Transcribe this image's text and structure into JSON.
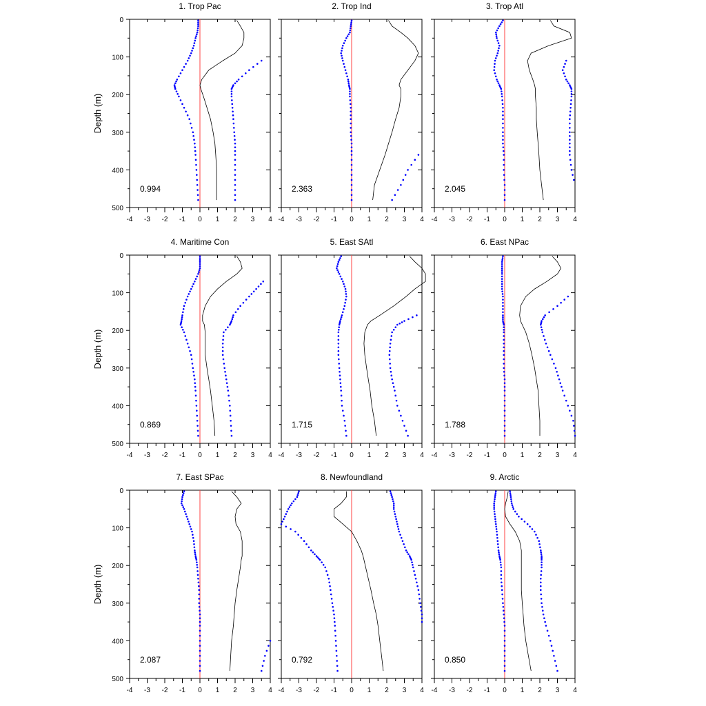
{
  "ylabel": "Depth (m)",
  "xlim": [
    -4,
    4
  ],
  "ylim": [
    0,
    500
  ],
  "y_reversed": true,
  "xticks": [
    "-4",
    "-3",
    "-2",
    "-1",
    "0",
    "1",
    "2",
    "3",
    "4"
  ],
  "yticks": [
    "0",
    "100",
    "200",
    "300",
    "400",
    "500"
  ],
  "colors": {
    "line": "#000000",
    "dots": "#0000ff",
    "zero_line": "#ff4040"
  },
  "chart_data": [
    {
      "type": "line",
      "title": "1. Trop Pac",
      "value_label": "0.994",
      "depths": [
        3,
        18,
        35,
        50,
        70,
        90,
        110,
        135,
        160,
        175,
        185,
        205,
        235,
        265,
        300,
        330,
        360,
        400,
        440,
        480
      ],
      "line": [
        2.1,
        2.3,
        2.5,
        2.5,
        2.4,
        2.0,
        1.3,
        0.5,
        0.1,
        0.0,
        0.05,
        0.2,
        0.4,
        0.6,
        0.75,
        0.85,
        0.9,
        0.95,
        0.95,
        0.95
      ],
      "lower": [
        -0.1,
        -0.1,
        -0.15,
        -0.25,
        -0.35,
        -0.5,
        -0.7,
        -1.0,
        -1.3,
        -1.45,
        -1.4,
        -1.2,
        -0.9,
        -0.6,
        -0.4,
        -0.3,
        -0.25,
        -0.2,
        -0.15,
        -0.1
      ],
      "upper": [
        null,
        null,
        null,
        null,
        null,
        null,
        3.5,
        2.8,
        2.2,
        1.9,
        1.8,
        1.8,
        1.85,
        1.9,
        1.95,
        2.0,
        2.0,
        2.0,
        2.0,
        2.0
      ]
    },
    {
      "type": "line",
      "title": "2. Trop Ind",
      "value_label": "2.363",
      "depths": [
        3,
        18,
        35,
        50,
        70,
        90,
        110,
        135,
        160,
        175,
        185,
        205,
        235,
        265,
        300,
        330,
        360,
        400,
        440,
        480
      ],
      "line": [
        2.1,
        2.3,
        2.8,
        3.2,
        3.6,
        3.8,
        3.6,
        3.2,
        2.8,
        2.7,
        2.8,
        2.8,
        2.7,
        2.5,
        2.3,
        2.1,
        1.9,
        1.6,
        1.3,
        1.2
      ],
      "lower": [
        0.0,
        -0.05,
        -0.1,
        -0.3,
        -0.5,
        -0.6,
        -0.5,
        -0.35,
        -0.2,
        -0.15,
        -0.1,
        -0.1,
        -0.05,
        -0.05,
        -0.05,
        0.0,
        0.0,
        0.0,
        0.0,
        0.0
      ],
      "upper": [
        null,
        null,
        null,
        null,
        null,
        null,
        null,
        null,
        null,
        null,
        null,
        null,
        null,
        null,
        null,
        null,
        3.8,
        3.2,
        2.8,
        2.3
      ]
    },
    {
      "type": "line",
      "title": "3. Trop Atl",
      "value_label": "2.045",
      "depths": [
        3,
        18,
        35,
        50,
        70,
        90,
        110,
        135,
        160,
        175,
        185,
        205,
        235,
        265,
        300,
        330,
        360,
        400,
        440,
        480
      ],
      "line": [
        2.6,
        2.8,
        3.7,
        3.8,
        2.5,
        1.5,
        1.3,
        1.4,
        1.6,
        1.7,
        1.75,
        1.75,
        1.8,
        1.8,
        1.85,
        1.9,
        1.95,
        2.0,
        2.1,
        2.2
      ],
      "lower": [
        -0.1,
        -0.3,
        -0.5,
        -0.45,
        -0.3,
        -0.4,
        -0.55,
        -0.6,
        -0.45,
        -0.3,
        -0.2,
        -0.15,
        -0.1,
        -0.1,
        -0.1,
        -0.1,
        -0.05,
        -0.05,
        0.0,
        0.0
      ],
      "upper": [
        null,
        null,
        null,
        null,
        null,
        null,
        3.5,
        3.3,
        3.5,
        3.7,
        3.8,
        3.8,
        3.75,
        3.7,
        3.7,
        3.7,
        3.7,
        3.8,
        4.0,
        null
      ]
    },
    {
      "type": "line",
      "title": "4. Maritime Con",
      "value_label": "0.869",
      "depths": [
        3,
        18,
        35,
        50,
        70,
        90,
        110,
        135,
        160,
        175,
        185,
        205,
        235,
        265,
        300,
        330,
        360,
        400,
        440,
        480
      ],
      "line": [
        2.1,
        2.3,
        2.4,
        2.1,
        1.5,
        1.0,
        0.6,
        0.3,
        0.15,
        0.15,
        0.25,
        0.3,
        0.3,
        0.3,
        0.4,
        0.5,
        0.6,
        0.7,
        0.8,
        0.85
      ],
      "lower": [
        0.0,
        0.0,
        0.0,
        -0.1,
        -0.3,
        -0.5,
        -0.7,
        -0.9,
        -1.0,
        -1.05,
        -1.1,
        -0.9,
        -0.7,
        -0.5,
        -0.4,
        -0.3,
        -0.25,
        -0.2,
        -0.15,
        -0.1
      ],
      "upper": [
        null,
        null,
        null,
        null,
        3.6,
        3.2,
        2.8,
        2.3,
        1.9,
        1.8,
        1.7,
        1.35,
        1.3,
        1.3,
        1.4,
        1.5,
        1.6,
        1.7,
        1.75,
        1.8
      ]
    },
    {
      "type": "line",
      "title": "5. East SAtl",
      "value_label": "1.715",
      "depths": [
        3,
        18,
        35,
        50,
        70,
        90,
        110,
        135,
        160,
        175,
        185,
        205,
        235,
        265,
        300,
        330,
        360,
        400,
        440,
        480
      ],
      "line": [
        3.3,
        3.6,
        4.0,
        4.2,
        4.2,
        3.6,
        3.1,
        2.4,
        1.6,
        1.1,
        0.9,
        0.75,
        0.7,
        0.75,
        0.85,
        0.95,
        1.05,
        1.15,
        1.3,
        1.4
      ],
      "lower": [
        -0.6,
        -0.75,
        -0.85,
        -0.7,
        -0.5,
        -0.35,
        -0.3,
        -0.4,
        -0.55,
        -0.65,
        -0.7,
        -0.75,
        -0.75,
        -0.75,
        -0.7,
        -0.65,
        -0.6,
        -0.55,
        -0.4,
        -0.3
      ],
      "upper": [
        null,
        null,
        null,
        null,
        null,
        null,
        null,
        null,
        3.7,
        3.0,
        2.6,
        2.3,
        2.2,
        2.15,
        2.2,
        2.3,
        2.45,
        2.6,
        2.9,
        3.2
      ]
    },
    {
      "type": "line",
      "title": "6. East NPac",
      "value_label": "1.788",
      "depths": [
        3,
        18,
        35,
        50,
        70,
        90,
        110,
        135,
        160,
        175,
        185,
        205,
        235,
        265,
        300,
        330,
        360,
        400,
        440,
        480
      ],
      "line": [
        2.7,
        3.0,
        3.2,
        3.0,
        2.4,
        1.7,
        1.2,
        0.9,
        0.85,
        0.9,
        1.0,
        1.2,
        1.4,
        1.55,
        1.7,
        1.8,
        1.9,
        1.95,
        2.0,
        2.0
      ],
      "lower": [
        -0.1,
        -0.15,
        -0.15,
        -0.15,
        -0.15,
        -0.15,
        -0.1,
        -0.1,
        -0.1,
        -0.1,
        -0.05,
        -0.05,
        -0.05,
        -0.05,
        -0.05,
        0.0,
        0.0,
        0.0,
        0.0,
        0.0
      ],
      "upper": [
        null,
        null,
        null,
        null,
        null,
        null,
        3.6,
        3.0,
        2.3,
        2.1,
        2.05,
        2.15,
        2.35,
        2.6,
        2.9,
        3.1,
        3.3,
        3.6,
        3.9,
        4.0
      ]
    },
    {
      "type": "line",
      "title": "7. East SPac",
      "value_label": "2.087",
      "depths": [
        3,
        18,
        35,
        50,
        70,
        90,
        110,
        135,
        160,
        175,
        185,
        205,
        235,
        265,
        300,
        330,
        360,
        400,
        440,
        480
      ],
      "line": [
        1.8,
        2.1,
        2.35,
        2.1,
        2.0,
        2.05,
        2.3,
        2.4,
        2.4,
        2.4,
        2.35,
        2.3,
        2.2,
        2.1,
        2.0,
        1.95,
        1.9,
        1.8,
        1.75,
        1.7
      ],
      "lower": [
        -0.9,
        -1.0,
        -1.05,
        -0.9,
        -0.75,
        -0.6,
        -0.45,
        -0.35,
        -0.3,
        -0.25,
        -0.2,
        -0.15,
        -0.1,
        -0.05,
        -0.05,
        0.0,
        0.0,
        0.0,
        0.0,
        0.0
      ],
      "upper": [
        null,
        null,
        null,
        null,
        null,
        null,
        null,
        null,
        null,
        null,
        null,
        null,
        null,
        null,
        null,
        null,
        null,
        4.0,
        3.7,
        3.5
      ]
    },
    {
      "type": "line",
      "title": "8. Newfoundland",
      "value_label": "0.792",
      "depths": [
        3,
        18,
        35,
        50,
        70,
        90,
        110,
        135,
        160,
        175,
        185,
        205,
        235,
        265,
        300,
        330,
        360,
        400,
        440,
        480
      ],
      "line": [
        -0.3,
        -0.3,
        -0.6,
        -1.0,
        -1.0,
        -0.5,
        0.0,
        0.3,
        0.55,
        0.65,
        0.7,
        0.8,
        0.95,
        1.1,
        1.25,
        1.4,
        1.5,
        1.6,
        1.7,
        1.8
      ],
      "lower": [
        -3.0,
        -3.1,
        -3.4,
        -3.6,
        -3.8,
        -4.0,
        -3.2,
        -2.7,
        -2.3,
        -2.0,
        -1.8,
        -1.5,
        -1.3,
        -1.2,
        -1.1,
        -1.0,
        -0.95,
        -0.9,
        -0.85,
        -0.8
      ],
      "upper": [
        2.2,
        2.3,
        2.4,
        2.4,
        2.5,
        2.6,
        2.7,
        2.9,
        3.1,
        3.3,
        3.4,
        3.5,
        3.65,
        3.8,
        3.9,
        4.0,
        4.0,
        null,
        null,
        null
      ]
    },
    {
      "type": "line",
      "title": "9. Arctic",
      "value_label": "0.850",
      "depths": [
        3,
        18,
        35,
        50,
        70,
        90,
        110,
        135,
        160,
        175,
        185,
        205,
        235,
        265,
        300,
        330,
        360,
        400,
        440,
        480
      ],
      "line": [
        0.2,
        0.15,
        0.05,
        0.0,
        0.05,
        0.3,
        0.6,
        0.85,
        0.95,
        0.95,
        0.95,
        0.95,
        0.95,
        0.95,
        1.0,
        1.05,
        1.1,
        1.2,
        1.35,
        1.5
      ],
      "lower": [
        -0.5,
        -0.55,
        -0.6,
        -0.6,
        -0.55,
        -0.5,
        -0.45,
        -0.4,
        -0.35,
        -0.3,
        -0.25,
        -0.2,
        -0.2,
        -0.15,
        -0.1,
        -0.05,
        0.0,
        0.0,
        0.0,
        0.0
      ],
      "upper": [
        0.3,
        0.35,
        0.4,
        0.5,
        0.8,
        1.3,
        1.7,
        1.95,
        2.05,
        2.1,
        2.1,
        2.1,
        2.05,
        2.05,
        2.1,
        2.2,
        2.35,
        2.6,
        2.8,
        3.0
      ]
    }
  ]
}
